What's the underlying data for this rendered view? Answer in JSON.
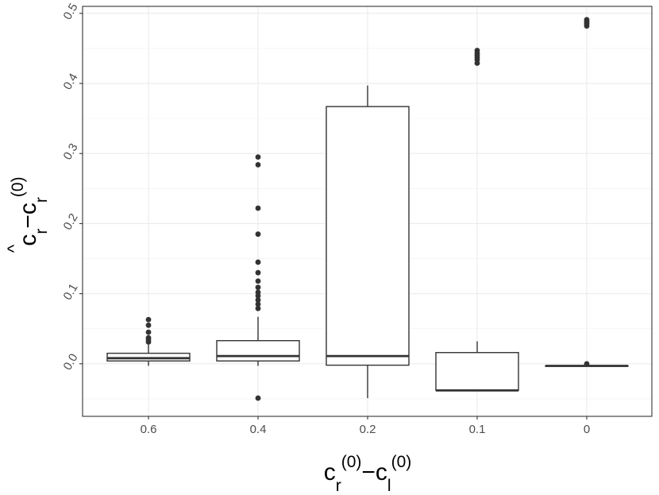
{
  "chart_data": {
    "type": "box",
    "xlabel": {
      "base": "c",
      "sup": "(0)",
      "sub_r": "r",
      "sub_l": "l",
      "minus": "−"
    },
    "ylabel": {
      "hat": "^",
      "base": "c",
      "sub": "r",
      "sup": "(0)",
      "minus": "−"
    },
    "categories": [
      "0.6",
      "0.4",
      "0.2",
      "0.1",
      "0"
    ],
    "ylim": [
      -0.075,
      0.51
    ],
    "yticks": [
      0.0,
      0.1,
      0.2,
      0.3,
      0.4,
      0.5
    ],
    "ytick_labels": [
      "0.0",
      "0.1",
      "0.2",
      "0.3",
      "0.4",
      "0.5"
    ],
    "grid": true,
    "boxes": [
      {
        "category": "0.6",
        "whisker_low": -0.003,
        "q1": 0.004,
        "median": 0.008,
        "q3": 0.015,
        "whisker_high": 0.027,
        "outliers": [
          0.031,
          0.034,
          0.037,
          0.045,
          0.055,
          0.063
        ]
      },
      {
        "category": "0.4",
        "whisker_low": -0.003,
        "q1": 0.004,
        "median": 0.011,
        "q3": 0.033,
        "whisker_high": 0.067,
        "outliers": [
          -0.049,
          0.079,
          0.085,
          0.091,
          0.097,
          0.102,
          0.109,
          0.118,
          0.13,
          0.145,
          0.185,
          0.222,
          0.284,
          0.295
        ]
      },
      {
        "category": "0.2",
        "whisker_low": -0.049,
        "q1": -0.002,
        "median": 0.011,
        "q3": 0.367,
        "whisker_high": 0.397,
        "outliers": []
      },
      {
        "category": "0.1",
        "whisker_low": -0.038,
        "q1": -0.038,
        "median": -0.038,
        "q3": 0.016,
        "whisker_high": 0.032,
        "outliers": [
          0.429,
          0.434,
          0.437,
          0.44,
          0.443,
          0.447
        ]
      },
      {
        "category": "0",
        "whisker_low": -0.003,
        "q1": -0.003,
        "median": -0.003,
        "q3": -0.003,
        "whisker_high": -0.003,
        "outliers": [
          0.0,
          0.482,
          0.485,
          0.487,
          0.489,
          0.491
        ]
      }
    ]
  }
}
